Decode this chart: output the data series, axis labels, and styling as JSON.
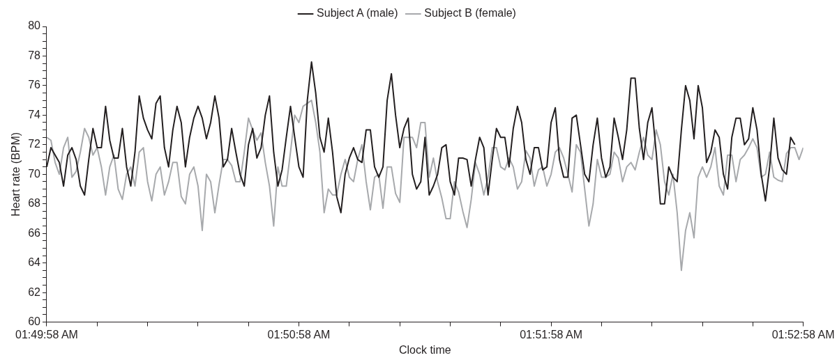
{
  "chart_data": {
    "type": "line",
    "xlabel": "Clock time",
    "ylabel": "Heart rate (BPM)",
    "legend": "top",
    "marker": "none",
    "line_style": "solid",
    "xlim": [
      1.832778,
      1.882778
    ],
    "ylim": [
      60,
      80
    ],
    "xticks": [
      {
        "value": 1.832778,
        "label": "01:49:58 AM"
      },
      {
        "value": 1.836111,
        "label": null
      },
      {
        "value": 1.839444,
        "label": null
      },
      {
        "value": 1.842778,
        "label": null
      },
      {
        "value": 1.846111,
        "label": null
      },
      {
        "value": 1.849444,
        "label": "01:50:58 AM"
      },
      {
        "value": 1.852778,
        "label": null
      },
      {
        "value": 1.856111,
        "label": null
      },
      {
        "value": 1.859444,
        "label": null
      },
      {
        "value": 1.862778,
        "label": null
      },
      {
        "value": 1.866111,
        "label": "01:51:58 AM"
      },
      {
        "value": 1.869444,
        "label": null
      },
      {
        "value": 1.872778,
        "label": null
      },
      {
        "value": 1.876111,
        "label": null
      },
      {
        "value": 1.879444,
        "label": null
      },
      {
        "value": 1.882778,
        "label": "01:52:58 AM"
      }
    ],
    "yticks": [
      60,
      {
        "value": 60.5,
        "label": null
      },
      {
        "value": 61,
        "label": null
      },
      {
        "value": 61.5,
        "label": null
      },
      62,
      {
        "value": 62.5,
        "label": null
      },
      {
        "value": 63,
        "label": null
      },
      {
        "value": 63.5,
        "label": null
      },
      64,
      {
        "value": 64.5,
        "label": null
      },
      {
        "value": 65,
        "label": null
      },
      {
        "value": 65.5,
        "label": null
      },
      66,
      {
        "value": 66.5,
        "label": null
      },
      {
        "value": 67,
        "label": null
      },
      {
        "value": 67.5,
        "label": null
      },
      68,
      {
        "value": 68.5,
        "label": null
      },
      {
        "value": 69,
        "label": null
      },
      {
        "value": 69.5,
        "label": null
      },
      70,
      {
        "value": 70.5,
        "label": null
      },
      {
        "value": 71,
        "label": null
      },
      {
        "value": 71.5,
        "label": null
      },
      72,
      {
        "value": 72.5,
        "label": null
      },
      {
        "value": 73,
        "label": null
      },
      {
        "value": 73.5,
        "label": null
      },
      74,
      {
        "value": 74.5,
        "label": null
      },
      {
        "value": 75,
        "label": null
      },
      {
        "value": 75.5,
        "label": null
      },
      76,
      {
        "value": 76.5,
        "label": null
      },
      {
        "value": 77,
        "label": null
      },
      {
        "value": 77.5,
        "label": null
      },
      78,
      {
        "value": 78.5,
        "label": null
      },
      {
        "value": 79,
        "label": null
      },
      {
        "value": 79.5,
        "label": null
      },
      80
    ],
    "x": [
      1.832778,
      1.833056,
      1.833333,
      1.833611,
      1.833889,
      1.834167,
      1.834444,
      1.834722,
      1.835,
      1.835278,
      1.835556,
      1.835833,
      1.836111,
      1.836389,
      1.836667,
      1.836944,
      1.837222,
      1.8375,
      1.837778,
      1.838056,
      1.838333,
      1.838611,
      1.838889,
      1.839167,
      1.839444,
      1.839722,
      1.84,
      1.840278,
      1.840556,
      1.840833,
      1.841111,
      1.841389,
      1.841667,
      1.841944,
      1.842222,
      1.8425,
      1.842778,
      1.843056,
      1.843333,
      1.843611,
      1.843889,
      1.844167,
      1.844444,
      1.844722,
      1.845,
      1.845278,
      1.845556,
      1.845833,
      1.846111,
      1.846389,
      1.846667,
      1.846944,
      1.847222,
      1.8475,
      1.847778,
      1.848056,
      1.848333,
      1.848611,
      1.848889,
      1.849167,
      1.849444,
      1.849722,
      1.85,
      1.850278,
      1.850556,
      1.850833,
      1.851111,
      1.851389,
      1.851667,
      1.851944,
      1.852222,
      1.8525,
      1.852778,
      1.853056,
      1.853333,
      1.853611,
      1.853889,
      1.854167,
      1.854444,
      1.854722,
      1.855,
      1.855278,
      1.855556,
      1.855833,
      1.856111,
      1.856389,
      1.856667,
      1.856944,
      1.857222,
      1.8575,
      1.857778,
      1.858056,
      1.858333,
      1.858611,
      1.858889,
      1.859167,
      1.859444,
      1.859722,
      1.86,
      1.860278,
      1.860556,
      1.860833,
      1.861111,
      1.861389,
      1.861667,
      1.861944,
      1.862222,
      1.8625,
      1.862778,
      1.863056,
      1.863333,
      1.863611,
      1.863889,
      1.864167,
      1.864444,
      1.864722,
      1.865,
      1.865278,
      1.865556,
      1.865833,
      1.866111,
      1.866389,
      1.866667,
      1.866944,
      1.867222,
      1.8675,
      1.867778,
      1.868056,
      1.868333,
      1.868611,
      1.868889,
      1.869167,
      1.869444,
      1.869722,
      1.87,
      1.870278,
      1.870556,
      1.870833,
      1.871111,
      1.871389,
      1.871667,
      1.871944,
      1.872222,
      1.8725,
      1.872778,
      1.873056,
      1.873333,
      1.873611,
      1.873889,
      1.874167,
      1.874444,
      1.874722,
      1.875,
      1.875278,
      1.875556,
      1.875833,
      1.876111,
      1.876389,
      1.876667,
      1.876944,
      1.877222,
      1.8775,
      1.877778,
      1.878056,
      1.878333,
      1.878611,
      1.878889,
      1.879167,
      1.879444,
      1.879722,
      1.88,
      1.880278,
      1.880556,
      1.880833,
      1.881111,
      1.881389,
      1.881667,
      1.881944,
      1.882222,
      1.8825,
      1.882778
    ],
    "series": [
      {
        "name": "Subject A (male)",
        "color": "#231f20",
        "values": [
          70.5,
          71.8,
          71.3,
          70.8,
          69.2,
          71.3,
          71.8,
          71.0,
          69.2,
          68.6,
          71.0,
          73.1,
          71.8,
          71.8,
          74.6,
          72.3,
          71.1,
          71.1,
          73.1,
          70.5,
          69.2,
          71.5,
          75.3,
          73.8,
          73.0,
          72.4,
          74.8,
          75.3,
          71.8,
          70.5,
          73.0,
          74.6,
          73.5,
          70.5,
          72.5,
          73.8,
          74.6,
          73.8,
          72.4,
          73.5,
          75.3,
          73.8,
          70.5,
          71.0,
          73.1,
          71.5,
          70.0,
          69.2,
          72.0,
          73.1,
          71.1,
          71.8,
          74.0,
          75.3,
          71.5,
          69.2,
          70.3,
          72.5,
          74.6,
          72.5,
          70.5,
          69.8,
          75.0,
          77.6,
          75.5,
          72.5,
          71.5,
          73.8,
          71.5,
          68.5,
          67.4,
          70.0,
          71.1,
          71.8,
          71.0,
          70.8,
          73.0,
          73.0,
          70.5,
          69.8,
          70.5,
          75.0,
          76.8,
          74.0,
          71.8,
          73.1,
          73.8,
          70.0,
          69.0,
          69.5,
          72.5,
          68.6,
          69.2,
          70.0,
          71.8,
          72.0,
          69.5,
          68.6,
          71.1,
          71.1,
          71.0,
          69.2,
          71.0,
          72.5,
          71.8,
          68.6,
          71.0,
          73.1,
          72.5,
          72.5,
          70.5,
          73.1,
          74.6,
          73.5,
          71.0,
          70.0,
          71.8,
          71.8,
          70.3,
          70.5,
          73.5,
          74.5,
          71.0,
          69.8,
          69.8,
          73.8,
          74.0,
          72.0,
          70.0,
          69.5,
          72.0,
          73.8,
          71.1,
          69.8,
          70.5,
          73.8,
          72.5,
          71.0,
          73.0,
          76.5,
          76.5,
          73.1,
          71.0,
          73.5,
          74.5,
          71.5,
          68.0,
          68.0,
          70.5,
          69.8,
          69.5,
          73.0,
          76.0,
          75.0,
          72.4,
          76.0,
          74.5,
          70.8,
          71.5,
          73.0,
          72.5,
          70.0,
          69.0,
          72.5,
          73.8,
          73.8,
          72.0,
          72.4,
          74.5,
          73.0,
          70.0,
          68.2,
          70.5,
          73.8,
          71.1,
          70.3,
          70.0,
          72.5,
          72.0,
          null,
          null
        ]
      },
      {
        "name": "Subject B (female)",
        "color": "#a7a9ac",
        "values": [
          72.5,
          72.3,
          70.8,
          70.0,
          71.8,
          72.5,
          69.8,
          70.2,
          71.5,
          73.1,
          72.5,
          71.3,
          71.8,
          70.5,
          68.6,
          70.5,
          71.3,
          69.0,
          68.3,
          70.0,
          70.5,
          69.2,
          71.5,
          71.8,
          69.5,
          68.2,
          70.0,
          70.5,
          68.6,
          69.5,
          70.8,
          70.8,
          68.5,
          68.0,
          70.0,
          70.5,
          69.2,
          66.2,
          70.0,
          69.5,
          67.4,
          69.3,
          71.0,
          71.0,
          70.6,
          69.5,
          69.5,
          71.5,
          73.8,
          73.0,
          72.3,
          72.8,
          70.8,
          69.2,
          66.5,
          70.5,
          69.2,
          69.2,
          71.5,
          74.0,
          73.5,
          74.6,
          74.8,
          75.0,
          73.5,
          71.5,
          67.4,
          69.0,
          68.6,
          68.6,
          70.0,
          71.0,
          69.8,
          69.5,
          71.0,
          72.0,
          69.5,
          67.6,
          69.8,
          70.0,
          67.7,
          70.5,
          70.5,
          68.7,
          68.1,
          72.5,
          72.5,
          72.5,
          71.8,
          73.5,
          73.5,
          69.8,
          71.1,
          69.5,
          68.4,
          67.0,
          67.0,
          69.5,
          68.8,
          67.5,
          66.4,
          68.3,
          70.8,
          70.0,
          68.6,
          69.8,
          71.8,
          71.8,
          70.5,
          70.3,
          71.1,
          70.5,
          69.0,
          69.5,
          71.6,
          71.1,
          69.2,
          70.3,
          70.5,
          69.2,
          70.0,
          71.5,
          71.8,
          71.1,
          70.0,
          68.8,
          72.0,
          71.5,
          69.0,
          66.5,
          68.0,
          71.0,
          69.8,
          69.8,
          70.0,
          71.5,
          71.1,
          69.5,
          70.5,
          70.8,
          70.3,
          71.5,
          72.5,
          71.3,
          71.0,
          73.0,
          72.0,
          69.5,
          68.6,
          70.0,
          67.4,
          63.5,
          66.2,
          67.4,
          65.7,
          69.8,
          70.5,
          69.8,
          70.5,
          71.8,
          69.2,
          68.6,
          71.3,
          71.3,
          69.5,
          71.0,
          71.3,
          71.8,
          72.4,
          71.8,
          69.8,
          70.0,
          71.5,
          69.8,
          69.6,
          69.5,
          71.4,
          71.8,
          71.8,
          71.0,
          71.8
        ]
      }
    ]
  }
}
